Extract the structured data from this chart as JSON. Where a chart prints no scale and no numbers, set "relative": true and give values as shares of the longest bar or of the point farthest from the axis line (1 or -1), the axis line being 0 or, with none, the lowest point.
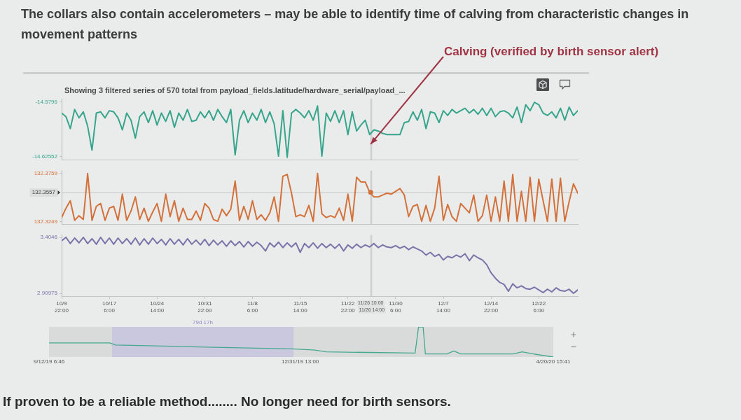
{
  "chart_data": [
    {
      "type": "line",
      "title": "The collars also contain accelerometers – may be able to identify time of calving from characteristic changes in movement patterns",
      "subtitle": "Showing 3 filtered series of 570 total from payload_fields.latitude/hardware_serial/payload_...",
      "annotations": [
        {
          "text": "Calving (verified by birth sensor alert)",
          "x": "--11-26T10:00",
          "y": -14.615
        },
        "If proven to be a reliable method........ No longer need for birth sensors."
      ],
      "x": [
        "--10-09T22:00",
        "--10-10T14:00",
        "--10-11T06:00",
        "--10-11T22:00",
        "--10-12T14:00",
        "--10-13T06:00",
        "--10-13T22:00",
        "--10-14T14:00",
        "--10-15T06:00",
        "--10-15T22:00",
        "--10-16T14:00",
        "--10-17T06:00",
        "--10-17T22:00",
        "--10-18T14:00",
        "--10-19T06:00",
        "--10-19T22:00",
        "--10-20T14:00",
        "--10-21T06:00",
        "--10-21T22:00",
        "--10-22T14:00",
        "--10-23T06:00",
        "--10-23T22:00",
        "--10-24T14:00",
        "--10-25T06:00",
        "--10-25T22:00",
        "--10-26T14:00",
        "--10-27T06:00",
        "--10-27T22:00",
        "--10-28T14:00",
        "--10-29T06:00",
        "--10-29T22:00",
        "--10-30T14:00",
        "--10-31T06:00",
        "--10-31T22:00",
        "--11-01T14:00",
        "--11-02T06:00",
        "--11-02T22:00",
        "--11-03T14:00",
        "--11-04T06:00",
        "--11-04T22:00",
        "--11-05T14:00",
        "--11-06T06:00",
        "--11-06T22:00",
        "--11-07T14:00",
        "--11-08T06:00",
        "--11-08T22:00",
        "--11-09T14:00",
        "--11-10T06:00",
        "--11-10T22:00",
        "--11-11T14:00",
        "--11-12T06:00",
        "--11-12T22:00",
        "--11-13T14:00",
        "--11-14T06:00",
        "--11-14T22:00",
        "--11-15T14:00",
        "--11-16T06:00",
        "--11-16T22:00",
        "--11-17T14:00",
        "--11-18T06:00",
        "--11-18T22:00",
        "--11-19T14:00",
        "--11-20T06:00",
        "--11-20T22:00",
        "--11-21T14:00",
        "--11-22T06:00",
        "--11-22T22:00",
        "--11-23T14:00",
        "--11-24T06:00",
        "--11-24T22:00",
        "--11-25T14:00",
        "--11-26T06:00",
        "--11-26T22:00",
        "--11-27T14:00",
        "--11-28T06:00",
        "--11-28T22:00",
        "--11-29T14:00",
        "--11-30T06:00",
        "--11-30T22:00",
        "--12-01T14:00",
        "--12-02T06:00",
        "--12-02T22:00",
        "--12-03T14:00",
        "--12-04T06:00",
        "--12-04T22:00",
        "--12-05T14:00",
        "--12-06T06:00",
        "--12-06T22:00",
        "--12-07T14:00",
        "--12-08T06:00",
        "--12-08T22:00",
        "--12-09T14:00",
        "--12-10T06:00",
        "--12-10T22:00",
        "--12-11T14:00",
        "--12-12T06:00",
        "--12-12T22:00",
        "--12-13T14:00",
        "--12-14T06:00",
        "--12-14T22:00",
        "--12-15T14:00",
        "--12-16T06:00",
        "--12-16T22:00",
        "--12-17T14:00",
        "--12-18T06:00",
        "--12-18T22:00",
        "--12-19T14:00",
        "--12-20T06:00",
        "--12-20T22:00",
        "--12-21T14:00",
        "--12-22T06:00",
        "--12-22T22:00",
        "--12-23T14:00",
        "--12-24T06:00",
        "--12-24T22:00",
        "--12-25T14:00",
        "--12-26T06:00",
        "--12-26T22:00",
        "--12-27T14:00",
        "--12-28T06:00"
      ],
      "xlim": [
        "--10-09T22:00",
        "--12-28T06:00"
      ],
      "ylim": [
        -14.628,
        -14.577
      ],
      "yticks": [
        -14.62552,
        -14.5796
      ],
      "color": "#36a58c",
      "values": [
        -14.589,
        -14.592,
        -14.602,
        -14.586,
        -14.593,
        -14.588,
        -14.6,
        -14.62,
        -14.589,
        -14.588,
        -14.593,
        -14.587,
        -14.588,
        -14.593,
        -14.603,
        -14.589,
        -14.595,
        -14.61,
        -14.592,
        -14.588,
        -14.597,
        -14.587,
        -14.599,
        -14.589,
        -14.596,
        -14.587,
        -14.601,
        -14.589,
        -14.595,
        -14.586,
        -14.596,
        -14.595,
        -14.588,
        -14.593,
        -14.587,
        -14.595,
        -14.586,
        -14.592,
        -14.597,
        -14.586,
        -14.624,
        -14.595,
        -14.587,
        -14.597,
        -14.589,
        -14.595,
        -14.586,
        -14.597,
        -14.588,
        -14.598,
        -14.625,
        -14.587,
        -14.626,
        -14.589,
        -14.586,
        -14.589,
        -14.593,
        -14.587,
        -14.595,
        -14.583,
        -14.625,
        -14.589,
        -14.596,
        -14.587,
        -14.597,
        -14.587,
        -14.607,
        -14.588,
        -14.604,
        -14.599,
        -14.595,
        -14.607,
        -14.603,
        -14.604,
        -14.606,
        -14.607,
        -14.607,
        -14.607,
        -14.607,
        -14.597,
        -14.596,
        -14.588,
        -14.595,
        -14.586,
        -14.602,
        -14.588,
        -14.589,
        -14.597,
        -14.587,
        -14.591,
        -14.586,
        -14.589,
        -14.587,
        -14.585,
        -14.589,
        -14.586,
        -14.59,
        -14.585,
        -14.591,
        -14.585,
        -14.592,
        -14.588,
        -14.587,
        -14.589,
        -14.593,
        -14.584,
        -14.597,
        -14.582,
        -14.587,
        -14.58,
        -14.582,
        -14.589,
        -14.591,
        -14.588,
        -14.593,
        -14.585,
        -14.595,
        -14.584,
        -14.591,
        -14.587
      ],
      "ref_lines": [
        {
          "axis": "x",
          "value": "--11-26T10:00"
        },
        {
          "axis": "x",
          "value": "--11-26T14:00"
        }
      ],
      "tick_labels": "y",
      "grid": false,
      "legend": false,
      "marker": "none"
    },
    {
      "type": "line",
      "x": [
        "--10-09T22:00",
        "--10-10T14:00",
        "--10-11T06:00",
        "--10-11T22:00",
        "--10-12T14:00",
        "--10-13T06:00",
        "--10-13T22:00",
        "--10-14T14:00",
        "--10-15T06:00",
        "--10-15T22:00",
        "--10-16T14:00",
        "--10-17T06:00",
        "--10-17T22:00",
        "--10-18T14:00",
        "--10-19T06:00",
        "--10-19T22:00",
        "--10-20T14:00",
        "--10-21T06:00",
        "--10-21T22:00",
        "--10-22T14:00",
        "--10-23T06:00",
        "--10-23T22:00",
        "--10-24T14:00",
        "--10-25T06:00",
        "--10-25T22:00",
        "--10-26T14:00",
        "--10-27T06:00",
        "--10-27T22:00",
        "--10-28T14:00",
        "--10-29T06:00",
        "--10-29T22:00",
        "--10-30T14:00",
        "--10-31T06:00",
        "--10-31T22:00",
        "--11-01T14:00",
        "--11-02T06:00",
        "--11-02T22:00",
        "--11-03T14:00",
        "--11-04T06:00",
        "--11-04T22:00",
        "--11-05T14:00",
        "--11-06T06:00",
        "--11-06T22:00",
        "--11-07T14:00",
        "--11-08T06:00",
        "--11-08T22:00",
        "--11-09T14:00",
        "--11-10T06:00",
        "--11-10T22:00",
        "--11-11T14:00",
        "--11-12T06:00",
        "--11-12T22:00",
        "--11-13T14:00",
        "--11-14T06:00",
        "--11-14T22:00",
        "--11-15T14:00",
        "--11-16T06:00",
        "--11-16T22:00",
        "--11-17T14:00",
        "--11-18T06:00",
        "--11-18T22:00",
        "--11-19T14:00",
        "--11-20T06:00",
        "--11-20T22:00",
        "--11-21T14:00",
        "--11-22T06:00",
        "--11-22T22:00",
        "--11-23T14:00",
        "--11-24T06:00",
        "--11-24T22:00",
        "--11-25T14:00",
        "--11-26T06:00",
        "--11-26T22:00",
        "--11-27T14:00",
        "--11-28T06:00",
        "--11-28T22:00",
        "--11-29T14:00",
        "--11-30T06:00",
        "--11-30T22:00",
        "--12-01T14:00",
        "--12-02T06:00",
        "--12-02T22:00",
        "--12-03T14:00",
        "--12-04T06:00",
        "--12-04T22:00",
        "--12-05T14:00",
        "--12-06T06:00",
        "--12-06T22:00",
        "--12-07T14:00",
        "--12-08T06:00",
        "--12-08T22:00",
        "--12-09T14:00",
        "--12-10T06:00",
        "--12-10T22:00",
        "--12-11T14:00",
        "--12-12T06:00",
        "--12-12T22:00",
        "--12-13T14:00",
        "--12-14T06:00",
        "--12-14T22:00",
        "--12-15T14:00",
        "--12-16T06:00",
        "--12-16T22:00",
        "--12-17T14:00",
        "--12-18T06:00",
        "--12-18T22:00",
        "--12-19T14:00",
        "--12-20T06:00",
        "--12-20T22:00",
        "--12-21T14:00",
        "--12-22T06:00",
        "--12-22T22:00",
        "--12-23T14:00",
        "--12-24T06:00",
        "--12-24T22:00",
        "--12-25T14:00",
        "--12-26T06:00",
        "--12-26T22:00",
        "--12-27T14:00",
        "--12-28T06:00"
      ],
      "xlim": [
        "--10-09T22:00",
        "--12-28T06:00"
      ],
      "ylim": [
        132.322,
        132.379
      ],
      "yticks": [
        132.3249,
        132.3759
      ],
      "series": [
        {
          "color": "#d4703a",
          "values": [
            132.329,
            132.339,
            132.347,
            132.326,
            132.331,
            132.327,
            132.376,
            132.326,
            132.341,
            132.344,
            132.326,
            132.339,
            132.341,
            132.326,
            132.354,
            132.326,
            132.336,
            132.351,
            132.327,
            132.339,
            132.325,
            132.335,
            132.344,
            132.325,
            132.354,
            132.33,
            132.347,
            132.325,
            132.339,
            132.327,
            132.327,
            132.336,
            132.326,
            132.344,
            132.339,
            132.327,
            132.325,
            132.338,
            132.331,
            132.338,
            132.368,
            132.326,
            132.341,
            132.327,
            132.347,
            132.327,
            132.332,
            132.326,
            132.334,
            132.351,
            132.325,
            132.373,
            132.375,
            132.355,
            132.33,
            132.332,
            132.33,
            132.342,
            132.325,
            132.376,
            132.333,
            132.329,
            132.331,
            132.329,
            132.339,
            132.326,
            132.354,
            132.325,
            132.372,
            132.367,
            132.367,
            132.356,
            132.351,
            132.351,
            132.353,
            132.355,
            132.354,
            132.357,
            132.36,
            132.353,
            132.33,
            132.341,
            132.343,
            132.325,
            132.342,
            132.325,
            132.339,
            132.373,
            132.326,
            132.343,
            132.33,
            132.325,
            132.344,
            132.339,
            132.334,
            132.353,
            132.325,
            132.331,
            132.353,
            132.325,
            132.351,
            132.325,
            132.368,
            132.325,
            132.375,
            132.325,
            132.357,
            132.325,
            132.372,
            132.325,
            132.37,
            132.347,
            132.325,
            132.37,
            132.325,
            132.371,
            132.325,
            132.346,
            132.365,
            132.355
          ]
        },
        {
          "type": "scatter",
          "x": [
            "--11-26T10:00"
          ],
          "values": [
            132.356
          ],
          "color": "#d4703a",
          "marker": "circle"
        }
      ],
      "ref_lines": [
        {
          "axis": "x",
          "value": "--11-26T10:00"
        },
        {
          "axis": "x",
          "value": "--11-26T14:00"
        },
        {
          "axis": "y",
          "value": 132.3557,
          "label": "132.3557"
        }
      ],
      "tick_labels": "y",
      "grid": false,
      "legend": false,
      "marker": "none"
    },
    {
      "type": "line",
      "x": [
        "--10-09T22:00",
        "--10-10T14:00",
        "--10-11T06:00",
        "--10-11T22:00",
        "--10-12T14:00",
        "--10-13T06:00",
        "--10-13T22:00",
        "--10-14T14:00",
        "--10-15T06:00",
        "--10-15T22:00",
        "--10-16T14:00",
        "--10-17T06:00",
        "--10-17T22:00",
        "--10-18T14:00",
        "--10-19T06:00",
        "--10-19T22:00",
        "--10-20T14:00",
        "--10-21T06:00",
        "--10-21T22:00",
        "--10-22T14:00",
        "--10-23T06:00",
        "--10-23T22:00",
        "--10-24T14:00",
        "--10-25T06:00",
        "--10-25T22:00",
        "--10-26T14:00",
        "--10-27T06:00",
        "--10-27T22:00",
        "--10-28T14:00",
        "--10-29T06:00",
        "--10-29T22:00",
        "--10-30T14:00",
        "--10-31T06:00",
        "--10-31T22:00",
        "--11-01T14:00",
        "--11-02T06:00",
        "--11-02T22:00",
        "--11-03T14:00",
        "--11-04T06:00",
        "--11-04T22:00",
        "--11-05T14:00",
        "--11-06T06:00",
        "--11-06T22:00",
        "--11-07T14:00",
        "--11-08T06:00",
        "--11-08T22:00",
        "--11-09T14:00",
        "--11-10T06:00",
        "--11-10T22:00",
        "--11-11T14:00",
        "--11-12T06:00",
        "--11-12T22:00",
        "--11-13T14:00",
        "--11-14T06:00",
        "--11-14T22:00",
        "--11-15T14:00",
        "--11-16T06:00",
        "--11-16T22:00",
        "--11-17T14:00",
        "--11-18T06:00",
        "--11-18T22:00",
        "--11-19T14:00",
        "--11-20T06:00",
        "--11-20T22:00",
        "--11-21T14:00",
        "--11-22T06:00",
        "--11-22T22:00",
        "--11-23T14:00",
        "--11-24T06:00",
        "--11-24T22:00",
        "--11-25T14:00",
        "--11-26T06:00",
        "--11-26T22:00",
        "--11-27T14:00",
        "--11-28T06:00",
        "--11-28T22:00",
        "--11-29T14:00",
        "--11-30T06:00",
        "--11-30T22:00",
        "--12-01T14:00",
        "--12-02T06:00",
        "--12-02T22:00",
        "--12-03T14:00",
        "--12-04T06:00",
        "--12-04T22:00",
        "--12-05T14:00",
        "--12-06T06:00",
        "--12-06T22:00",
        "--12-07T14:00",
        "--12-08T06:00",
        "--12-08T22:00",
        "--12-09T14:00",
        "--12-10T06:00",
        "--12-10T22:00",
        "--12-11T14:00",
        "--12-12T06:00",
        "--12-12T22:00",
        "--12-13T14:00",
        "--12-14T06:00",
        "--12-14T22:00",
        "--12-15T14:00",
        "--12-16T06:00",
        "--12-16T22:00",
        "--12-17T14:00",
        "--12-18T06:00",
        "--12-18T22:00",
        "--12-19T14:00",
        "--12-20T06:00",
        "--12-20T22:00",
        "--12-21T14:00",
        "--12-22T06:00",
        "--12-22T22:00",
        "--12-23T14:00",
        "--12-24T06:00",
        "--12-24T22:00",
        "--12-25T14:00",
        "--12-26T06:00",
        "--12-26T22:00",
        "--12-27T14:00",
        "--12-28T06:00"
      ],
      "xlim": [
        "--10-09T22:00",
        "--12-28T06:00"
      ],
      "xticks": [
        {
          "value": "--10-09T22:00",
          "label": "10/9 22:00"
        },
        {
          "value": "--10-17T06:00",
          "label": "10/17 6:00"
        },
        {
          "value": "--10-24T14:00",
          "label": "10/24 14:00"
        },
        {
          "value": "--10-31T22:00",
          "label": "10/31 22:00"
        },
        {
          "value": "--11-08T06:00",
          "label": "11/8 6:00"
        },
        {
          "value": "--11-15T14:00",
          "label": "11/15 14:00"
        },
        {
          "value": "--11-22T22:00",
          "label": "11/22 22:00"
        },
        {
          "value": "--11-30T06:00",
          "label": "11/30 6:00"
        },
        {
          "value": "--12-07T14:00",
          "label": "12/7 14:00"
        },
        {
          "value": "--12-14T22:00",
          "label": "12/14 22:00"
        },
        {
          "value": "--12-22T06:00",
          "label": "12/22 6:00"
        }
      ],
      "ylim": [
        2.885,
        3.425
      ],
      "yticks": [
        2.90975,
        3.4046
      ],
      "color": "#7b72a9",
      "values": [
        3.374,
        3.405,
        3.35,
        3.399,
        3.356,
        3.405,
        3.35,
        3.393,
        3.344,
        3.405,
        3.35,
        3.399,
        3.344,
        3.399,
        3.35,
        3.393,
        3.344,
        3.399,
        3.338,
        3.393,
        3.344,
        3.399,
        3.35,
        3.387,
        3.338,
        3.393,
        3.344,
        3.387,
        3.338,
        3.393,
        3.344,
        3.38,
        3.338,
        3.387,
        3.332,
        3.38,
        3.338,
        3.374,
        3.326,
        3.374,
        3.332,
        3.368,
        3.32,
        3.368,
        3.326,
        3.362,
        3.332,
        3.284,
        3.356,
        3.32,
        3.362,
        3.314,
        3.356,
        3.32,
        3.356,
        3.272,
        3.35,
        3.314,
        3.356,
        3.308,
        3.35,
        3.314,
        3.344,
        3.308,
        3.344,
        3.284,
        3.338,
        3.308,
        3.344,
        3.314,
        3.338,
        3.32,
        3.35,
        3.314,
        3.338,
        3.32,
        3.314,
        3.332,
        3.308,
        3.326,
        3.296,
        3.32,
        3.302,
        3.284,
        3.248,
        3.272,
        3.236,
        3.254,
        3.205,
        3.236,
        3.224,
        3.248,
        3.23,
        3.26,
        3.199,
        3.248,
        3.224,
        3.205,
        3.163,
        3.091,
        3.043,
        3.006,
        2.988,
        2.928,
        2.994,
        2.958,
        2.976,
        2.952,
        2.946,
        2.964,
        2.94,
        2.916,
        2.946,
        2.922,
        2.958,
        2.934,
        2.928,
        2.946,
        2.91,
        2.94
      ],
      "ref_lines": [
        {
          "axis": "x",
          "value": "--11-26T10:00",
          "label": "11/26 10:00"
        },
        {
          "axis": "x",
          "value": "--11-26T14:00",
          "label": "11/26 14:00"
        }
      ],
      "grid": false,
      "legend": false,
      "marker": "none"
    },
    {
      "type": "line",
      "relative": true,
      "color": "#44a88f",
      "x": [
        "2019-09-12T06:46",
        "2019-10-09T00:00",
        "2019-10-11T12:00",
        "2019-11-20T00:00",
        "2019-12-28T00:00",
        "2020-01-07T00:00",
        "2020-01-12T00:00",
        "2020-02-20T00:00",
        "2020-02-21T12:00",
        "2020-02-23T12:00",
        "2020-02-24T12:00",
        "2020-03-05T00:00",
        "2020-03-08T00:00",
        "2020-03-11T00:00",
        "2020-04-03T00:00",
        "2020-04-07T00:00",
        "2020-04-12T00:00",
        "2020-04-20T15:41"
      ],
      "values": [
        0.47,
        0.47,
        0.4,
        0.33,
        0.27,
        0.23,
        0.17,
        0.13,
        1,
        1,
        0.1,
        0.1,
        0.2,
        0.1,
        0.1,
        0.17,
        0.1,
        0
      ],
      "xlim": [
        "2019-09-12T06:46",
        "2020-04-20T15:41"
      ],
      "xticks": [
        {
          "value": "2019-09-12T06:46",
          "label": "9/12/19 6:46"
        },
        {
          "value": "2019-12-31T13:00",
          "label": "12/31/19 13:00"
        },
        {
          "value": "2020-04-20T15:41",
          "label": "4/20/20 15:41"
        }
      ],
      "bands": [
        {
          "axis": "x",
          "from": "2019-10-09T22:00",
          "to": "2019-12-28T15:00",
          "label": "79d 17h",
          "color": "#c9c8de"
        }
      ],
      "legend": false
    }
  ]
}
